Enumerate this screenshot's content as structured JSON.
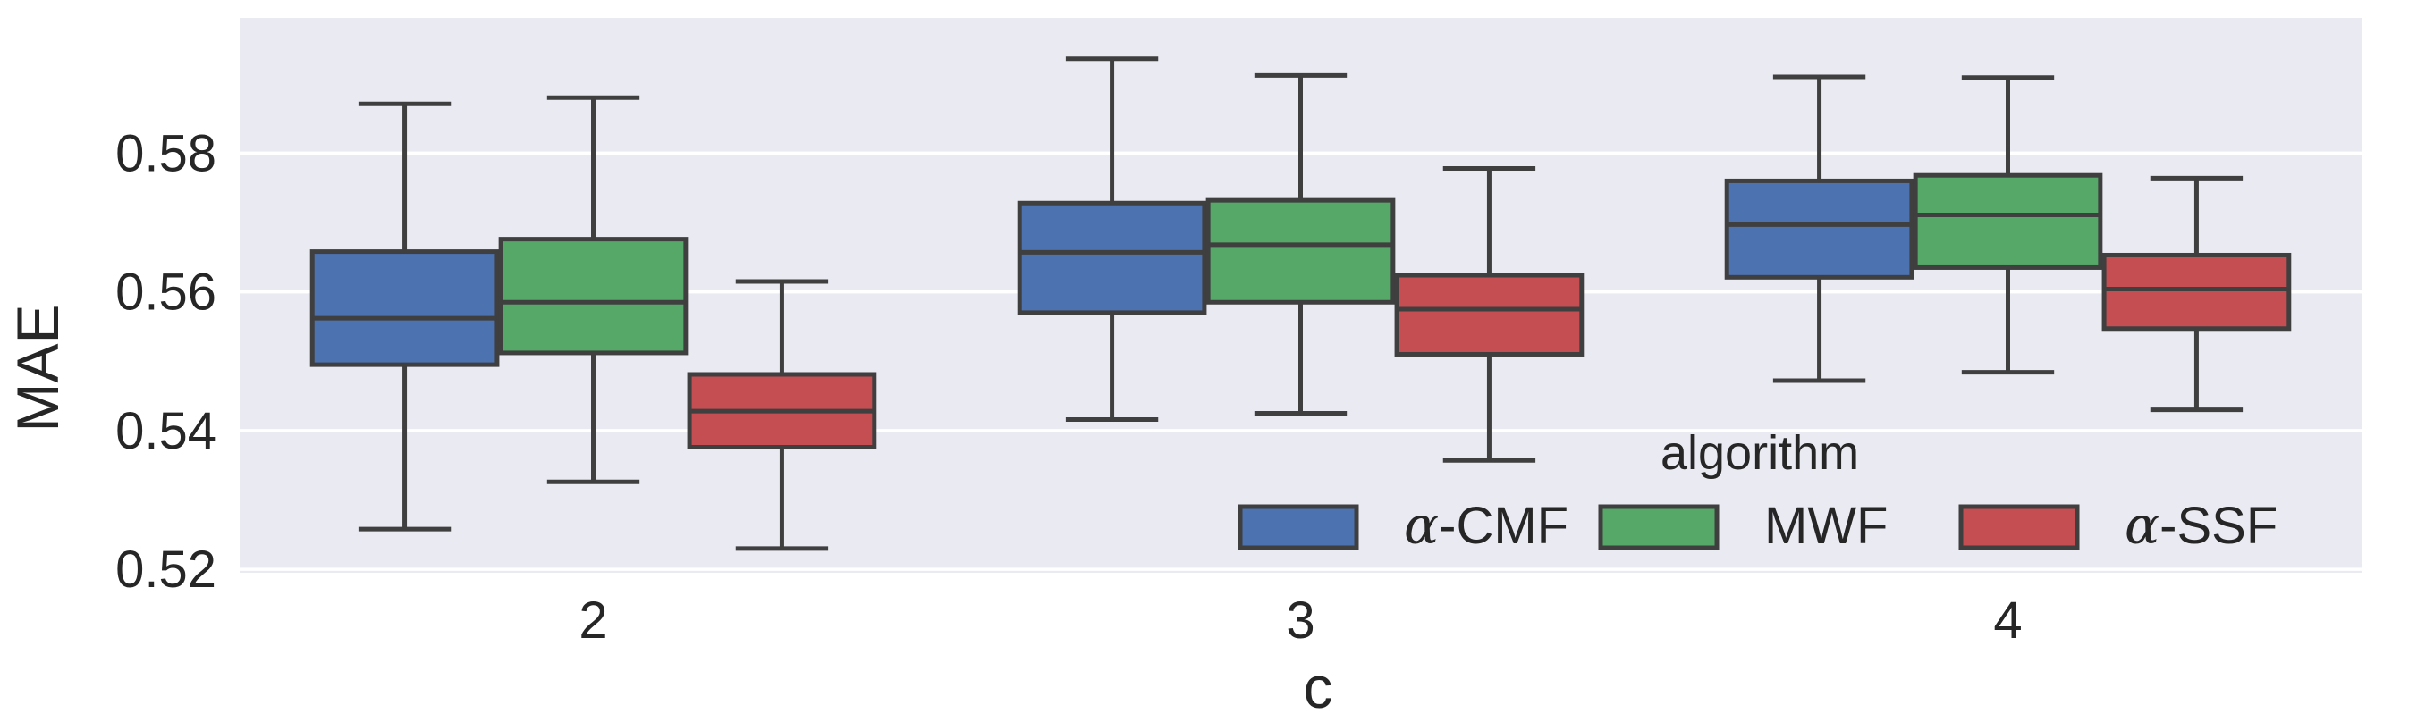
{
  "chart_data": {
    "type": "box",
    "xlabel": "c",
    "ylabel": "MAE",
    "categories": [
      "2",
      "3",
      "4"
    ],
    "ylim": [
      0.5195,
      0.5995
    ],
    "yticks": [
      0.52,
      0.54,
      0.56,
      0.58
    ],
    "ytick_labels": [
      "0.52",
      "0.54",
      "0.56",
      "0.58"
    ],
    "grid": true,
    "legend": {
      "title": "algorithm",
      "position": "lower-right",
      "ncol": 3
    },
    "series": [
      {
        "name": "α-CMF",
        "label_italic": "α",
        "label_rest": "-CMF",
        "color": "#4c72b0",
        "boxes": [
          {
            "whislo": 0.5258,
            "q1": 0.5495,
            "med": 0.5562,
            "q3": 0.5658,
            "whishi": 0.5871
          },
          {
            "whislo": 0.5416,
            "q1": 0.557,
            "med": 0.5657,
            "q3": 0.5728,
            "whishi": 0.5936
          },
          {
            "whislo": 0.5472,
            "q1": 0.5621,
            "med": 0.5697,
            "q3": 0.576,
            "whishi": 0.591
          }
        ]
      },
      {
        "name": "MWF",
        "label_italic": "",
        "label_rest": "MWF",
        "color": "#55a868",
        "boxes": [
          {
            "whislo": 0.5326,
            "q1": 0.5512,
            "med": 0.5585,
            "q3": 0.5676,
            "whishi": 0.588
          },
          {
            "whislo": 0.5425,
            "q1": 0.5585,
            "med": 0.5668,
            "q3": 0.5732,
            "whishi": 0.5912
          },
          {
            "whislo": 0.5484,
            "q1": 0.5635,
            "med": 0.5711,
            "q3": 0.5768,
            "whishi": 0.5909
          }
        ]
      },
      {
        "name": "α-SSF",
        "label_italic": "α",
        "label_rest": "-SSF",
        "color": "#c44e52",
        "boxes": [
          {
            "whislo": 0.523,
            "q1": 0.5376,
            "med": 0.5428,
            "q3": 0.5481,
            "whishi": 0.5615
          },
          {
            "whislo": 0.5357,
            "q1": 0.551,
            "med": 0.5575,
            "q3": 0.5624,
            "whishi": 0.5778
          },
          {
            "whislo": 0.543,
            "q1": 0.5547,
            "med": 0.5604,
            "q3": 0.5653,
            "whishi": 0.5764
          }
        ]
      }
    ]
  }
}
